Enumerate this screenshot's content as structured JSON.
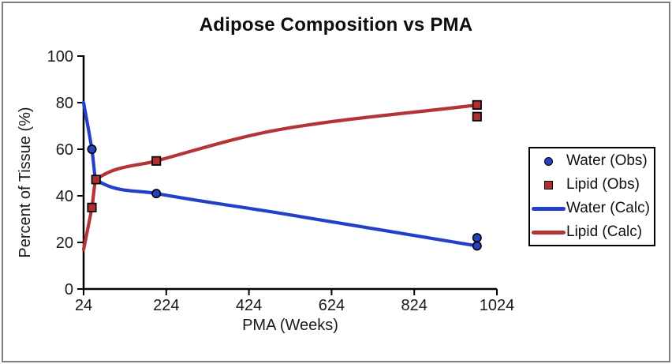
{
  "chart_data": {
    "type": "line",
    "title": "Adipose Composition vs PMA",
    "xlabel": "PMA (Weeks)",
    "ylabel": "Percent of Tissue (%)",
    "xlim": [
      24,
      1024
    ],
    "ylim": [
      0,
      100
    ],
    "x_ticks": [
      24,
      224,
      424,
      624,
      824,
      1024
    ],
    "y_ticks": [
      0,
      20,
      40,
      60,
      80,
      100
    ],
    "grid": false,
    "legend_position": "right-outside",
    "series": [
      {
        "name": "Water (Obs)",
        "type": "scatter",
        "marker": "circle",
        "color": "#2541bd",
        "points": [
          [
            44,
            60
          ],
          [
            200,
            41
          ],
          [
            976,
            22
          ],
          [
            976,
            18.5
          ]
        ]
      },
      {
        "name": "Lipid (Obs)",
        "type": "scatter",
        "marker": "square",
        "color": "#b02f31",
        "points": [
          [
            44,
            35
          ],
          [
            54,
            47
          ],
          [
            200,
            55
          ],
          [
            976,
            79
          ],
          [
            976,
            74
          ]
        ]
      },
      {
        "name": "Water (Calc)",
        "type": "line",
        "color": "#2440c8",
        "points": [
          [
            24,
            80
          ],
          [
            44,
            60
          ],
          [
            54,
            47
          ],
          [
            200,
            41
          ],
          [
            500,
            32.5
          ],
          [
            976,
            18.5
          ]
        ]
      },
      {
        "name": "Lipid (Calc)",
        "type": "line",
        "color": "#b23537",
        "points": [
          [
            24,
            17
          ],
          [
            44,
            35
          ],
          [
            54,
            47
          ],
          [
            200,
            55
          ],
          [
            500,
            68.5
          ],
          [
            976,
            79
          ]
        ]
      }
    ]
  }
}
